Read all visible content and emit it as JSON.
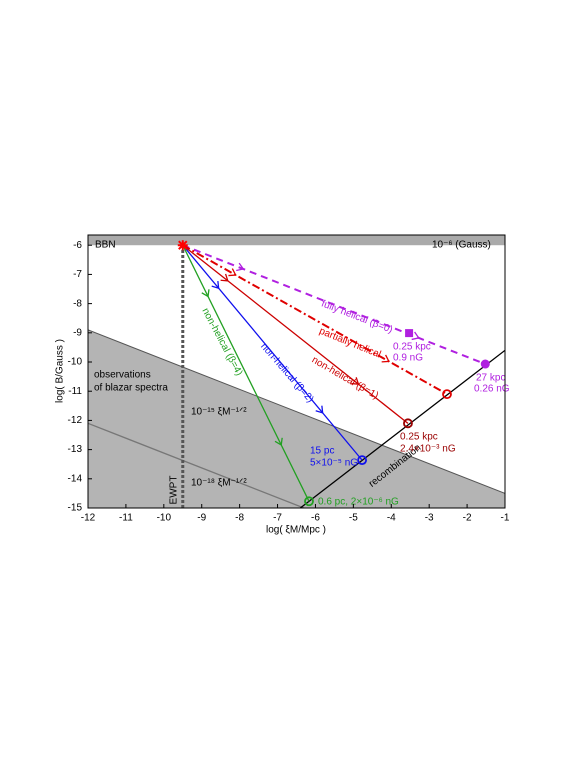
{
  "chart_data": {
    "type": "line",
    "xlabel": "log( ξM/Mpc )",
    "ylabel": "log( B/Gauss )",
    "xlim": [
      -12,
      -1
    ],
    "ylim": [
      -15,
      -5.65
    ],
    "xticks": [
      -12,
      -11,
      -10,
      -9,
      -8,
      -7,
      -6,
      -5,
      -4,
      -3,
      -2,
      -1
    ],
    "yticks": [
      -15,
      -14,
      -13,
      -12,
      -11,
      -10,
      -9,
      -8,
      -7,
      -6
    ],
    "bbn_level": -6,
    "regions": [
      {
        "x": [
          -12,
          -1
        ],
        "y": [
          -8.9,
          -14.5
        ],
        "color": "#b4b4b4"
      }
    ],
    "guides": [
      {
        "x": [
          -12,
          -1
        ],
        "y": [
          -12.1,
          -17.7
        ],
        "color": "#777"
      },
      {
        "x": [
          -6.4,
          -1
        ],
        "y": [
          -15,
          -9.6
        ],
        "color": "#000"
      },
      {
        "x": [
          -9.5,
          -9.5
        ],
        "y": [
          -15,
          -6
        ],
        "color": "#555"
      }
    ],
    "series": [
      {
        "name": "fully helical (β=0)",
        "color": "#b020e0",
        "dash": "7,5",
        "x": [
          -9.5,
          -1.52
        ],
        "y": [
          -6,
          -10.07
        ]
      },
      {
        "name": "partially helical",
        "color": "#e00000",
        "dash": "8,3,2,3",
        "x": [
          -9.5,
          -2.53
        ],
        "y": [
          -6,
          -11.1
        ]
      },
      {
        "name": "non-helical (β=1)",
        "color": "#cc0000",
        "dash": "",
        "x": [
          -9.5,
          -3.56
        ],
        "y": [
          -6,
          -12.1
        ]
      },
      {
        "name": "non-helical (β=2)",
        "color": "#1010ee",
        "dash": "",
        "x": [
          -9.5,
          -4.77
        ],
        "y": [
          -6,
          -13.36
        ]
      },
      {
        "name": "non-helical (β=4)",
        "color": "#22a022",
        "dash": "",
        "x": [
          -9.5,
          -6.17
        ],
        "y": [
          -6,
          -14.77
        ]
      }
    ],
    "points": [
      {
        "x": -9.5,
        "y": -6,
        "color": "#ff0000",
        "shape": "star"
      },
      {
        "x": -3.53,
        "y": -9.01,
        "color": "#b020e0",
        "shape": "square"
      },
      {
        "x": -1.52,
        "y": -10.07,
        "color": "#b020e0",
        "shape": "dot"
      },
      {
        "x": -2.53,
        "y": -11.1,
        "color": "#e00000",
        "shape": "ring"
      },
      {
        "x": -3.56,
        "y": -12.1,
        "color": "#990000",
        "shape": "ring"
      },
      {
        "x": -4.77,
        "y": -13.36,
        "color": "#1010ee",
        "shape": "ring"
      },
      {
        "x": -6.17,
        "y": -14.77,
        "color": "#22a022",
        "shape": "ring"
      }
    ],
    "annotations": [
      "BBN",
      "10⁻⁶  (Gauss)",
      "observations",
      "of blazar spectra",
      "10⁻¹⁵ ξM⁻¹ᐟ²",
      "10⁻¹⁸ ξM⁻¹ᐟ²",
      "EWPT",
      "recombination",
      "0.25 kpc",
      "0.9 nG",
      "27 kpc",
      "0.26 nG",
      "0.25 kpc",
      "2.4×10⁻³ nG",
      "15 pc",
      "5×10⁻⁵ nG",
      "0.6 pc, 2×10⁻⁶ nG"
    ]
  }
}
